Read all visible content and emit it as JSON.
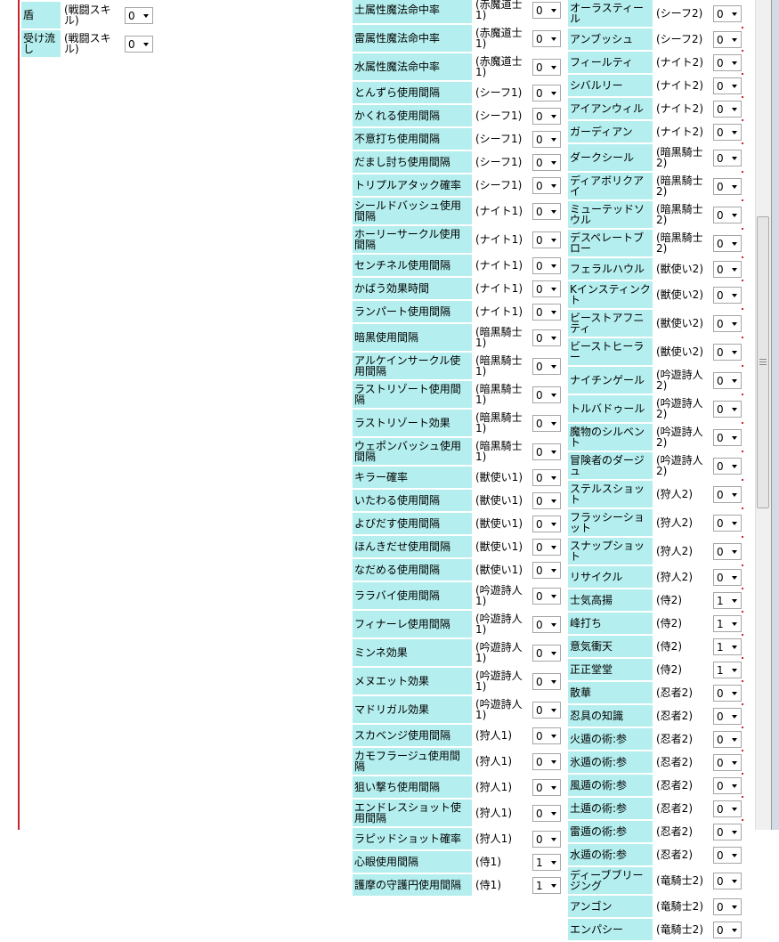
{
  "left": {
    "rows": [
      {
        "name": "盾",
        "job": "(戦闘スキル)",
        "value": 0
      },
      {
        "name": "受け流し",
        "job": "(戦闘スキル)",
        "value": 0
      }
    ]
  },
  "middle": {
    "rows": [
      {
        "name": "土属性魔法命中率",
        "job": "(赤魔道士1)",
        "value": 0
      },
      {
        "name": "雷属性魔法命中率",
        "job": "(赤魔道士1)",
        "value": 0
      },
      {
        "name": "水属性魔法命中率",
        "job": "(赤魔道士1)",
        "value": 0
      },
      {
        "name": "とんずら使用間隔",
        "job": "(シーフ1)",
        "value": 0
      },
      {
        "name": "かくれる使用間隔",
        "job": "(シーフ1)",
        "value": 0
      },
      {
        "name": "不意打ち使用間隔",
        "job": "(シーフ1)",
        "value": 0
      },
      {
        "name": "だまし討ち使用間隔",
        "job": "(シーフ1)",
        "value": 0
      },
      {
        "name": "トリプルアタック確率",
        "job": "(シーフ1)",
        "value": 0
      },
      {
        "name": "シールドバッシュ使用間隔",
        "job": "(ナイト1)",
        "value": 0
      },
      {
        "name": "ホーリーサークル使用間隔",
        "job": "(ナイト1)",
        "value": 0
      },
      {
        "name": "センチネル使用間隔",
        "job": "(ナイト1)",
        "value": 0
      },
      {
        "name": "かばう効果時間",
        "job": "(ナイト1)",
        "value": 0
      },
      {
        "name": "ランパート使用間隔",
        "job": "(ナイト1)",
        "value": 0
      },
      {
        "name": "暗黒使用間隔",
        "job": "(暗黒騎士1)",
        "value": 0
      },
      {
        "name": "アルケインサークル使用間隔",
        "job": "(暗黒騎士1)",
        "value": 0
      },
      {
        "name": "ラストリゾート使用間隔",
        "job": "(暗黒騎士1)",
        "value": 0
      },
      {
        "name": "ラストリゾート効果",
        "job": "(暗黒騎士1)",
        "value": 0
      },
      {
        "name": "ウェポンバッシュ使用間隔",
        "job": "(暗黒騎士1)",
        "value": 0
      },
      {
        "name": "キラー確率",
        "job": "(獣使い1)",
        "value": 0
      },
      {
        "name": "いたわる使用間隔",
        "job": "(獣使い1)",
        "value": 0
      },
      {
        "name": "よびだす使用間隔",
        "job": "(獣使い1)",
        "value": 0
      },
      {
        "name": "ほんきだせ使用間隔",
        "job": "(獣使い1)",
        "value": 0
      },
      {
        "name": "なだめる使用間隔",
        "job": "(獣使い1)",
        "value": 0
      },
      {
        "name": "ララバイ使用間隔",
        "job": "(吟遊詩人1)",
        "value": 0
      },
      {
        "name": "フィナーレ使用間隔",
        "job": "(吟遊詩人1)",
        "value": 0
      },
      {
        "name": "ミンネ効果",
        "job": "(吟遊詩人1)",
        "value": 0
      },
      {
        "name": "メヌエット効果",
        "job": "(吟遊詩人1)",
        "value": 0
      },
      {
        "name": "マドリガル効果",
        "job": "(吟遊詩人1)",
        "value": 0
      },
      {
        "name": "スカベンジ使用間隔",
        "job": "(狩人1)",
        "value": 0
      },
      {
        "name": "カモフラージュ使用間隔",
        "job": "(狩人1)",
        "value": 0
      },
      {
        "name": "狙い撃ち使用間隔",
        "job": "(狩人1)",
        "value": 0
      },
      {
        "name": "エンドレスショット使用間隔",
        "job": "(狩人1)",
        "value": 0
      },
      {
        "name": "ラピッドショット確率",
        "job": "(狩人1)",
        "value": 0
      },
      {
        "name": "心眼使用間隔",
        "job": "(侍1)",
        "value": 1
      },
      {
        "name": "護摩の守護円使用間隔",
        "job": "(侍1)",
        "value": 1
      }
    ]
  },
  "right": {
    "rows": [
      {
        "name": "オーラスティール",
        "job": "(シーフ2)",
        "value": 0
      },
      {
        "name": "アンブッシュ",
        "job": "(シーフ2)",
        "value": 0
      },
      {
        "name": "フィールティ",
        "job": "(ナイト2)",
        "value": 0
      },
      {
        "name": "シバルリー",
        "job": "(ナイト2)",
        "value": 0
      },
      {
        "name": "アイアンウィル",
        "job": "(ナイト2)",
        "value": 0
      },
      {
        "name": "ガーディアン",
        "job": "(ナイト2)",
        "value": 0
      },
      {
        "name": "ダークシール",
        "job": "(暗黒騎士2)",
        "value": 0
      },
      {
        "name": "ディアボリクアイ",
        "job": "(暗黒騎士2)",
        "value": 0
      },
      {
        "name": "ミューテッドソウル",
        "job": "(暗黒騎士2)",
        "value": 0
      },
      {
        "name": "デスペレートブロー",
        "job": "(暗黒騎士2)",
        "value": 0
      },
      {
        "name": "フェラルハウル",
        "job": "(獣使い2)",
        "value": 0
      },
      {
        "name": "Kインスティンクト",
        "job": "(獣使い2)",
        "value": 0
      },
      {
        "name": "ビーストアフニティ",
        "job": "(獣使い2)",
        "value": 0
      },
      {
        "name": "ビーストヒーラー",
        "job": "(獣使い2)",
        "value": 0
      },
      {
        "name": "ナイチンゲール",
        "job": "(吟遊詩人2)",
        "value": 0
      },
      {
        "name": "トルバドゥール",
        "job": "(吟遊詩人2)",
        "value": 0
      },
      {
        "name": "魔物のシルベント",
        "job": "(吟遊詩人2)",
        "value": 0
      },
      {
        "name": "冒険者のダージュ",
        "job": "(吟遊詩人2)",
        "value": 0
      },
      {
        "name": "ステルスショット",
        "job": "(狩人2)",
        "value": 0
      },
      {
        "name": "フラッシーショット",
        "job": "(狩人2)",
        "value": 0
      },
      {
        "name": "スナップショット",
        "job": "(狩人2)",
        "value": 0
      },
      {
        "name": "リサイクル",
        "job": "(狩人2)",
        "value": 0
      },
      {
        "name": "士気高揚",
        "job": "(侍2)",
        "value": 1
      },
      {
        "name": "峰打ち",
        "job": "(侍2)",
        "value": 1
      },
      {
        "name": "意気衝天",
        "job": "(侍2)",
        "value": 1
      },
      {
        "name": "正正堂堂",
        "job": "(侍2)",
        "value": 1
      },
      {
        "name": "散華",
        "job": "(忍者2)",
        "value": 0
      },
      {
        "name": "忍具の知識",
        "job": "(忍者2)",
        "value": 0
      },
      {
        "name": "火遁の術:参",
        "job": "(忍者2)",
        "value": 0
      },
      {
        "name": "氷遁の術:参",
        "job": "(忍者2)",
        "value": 0
      },
      {
        "name": "風遁の術:参",
        "job": "(忍者2)",
        "value": 0
      },
      {
        "name": "土遁の術:参",
        "job": "(忍者2)",
        "value": 0
      },
      {
        "name": "雷遁の術:参",
        "job": "(忍者2)",
        "value": 0
      },
      {
        "name": "水遁の術:参",
        "job": "(忍者2)",
        "value": 0
      },
      {
        "name": "ディーブブリージング",
        "job": "(竜騎士2)",
        "value": 0
      },
      {
        "name": "アンゴン",
        "job": "(竜騎士2)",
        "value": 0
      },
      {
        "name": "エンパシー",
        "job": "(竜騎士2)",
        "value": 0
      }
    ]
  }
}
